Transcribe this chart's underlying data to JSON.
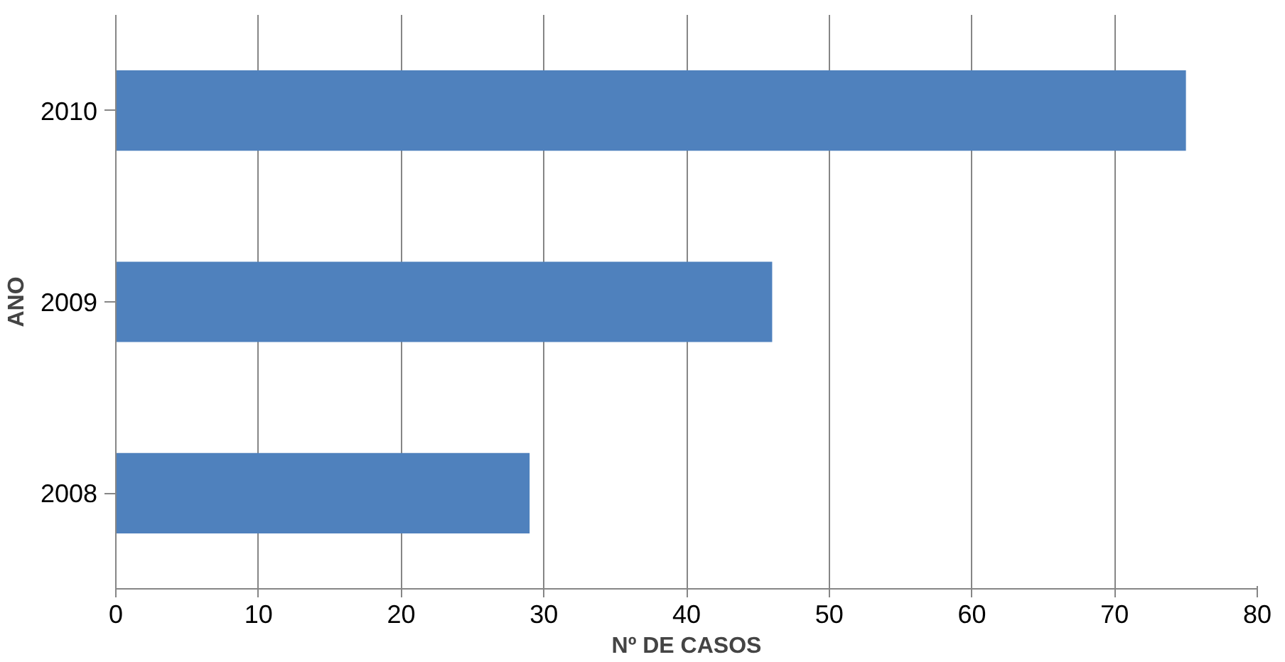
{
  "chart_data": {
    "type": "bar",
    "orientation": "horizontal",
    "categories": [
      "2010",
      "2009",
      "2008"
    ],
    "values": [
      75,
      46,
      29
    ],
    "color": "#4f81bd",
    "xlim": [
      0,
      80
    ],
    "xticks": [
      0,
      10,
      20,
      30,
      40,
      50,
      60,
      70,
      80
    ],
    "xlabel": "Nº DE CASOS",
    "ylabel": "ANO",
    "grid": "x"
  }
}
